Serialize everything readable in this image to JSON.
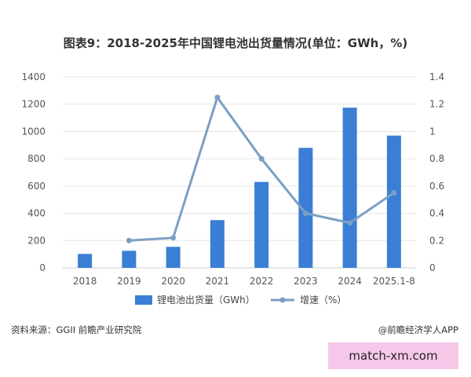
{
  "title": "图表9：2018-2025年中国锂电池出货量情况(单位：GWh，%)",
  "source": "资料来源：GGII 前瞻产业研究院",
  "credit": "@前瞻经济学人APP",
  "badge": "match-xm.com",
  "colors": {
    "bar": "#3a7fd5",
    "line": "#7b9fc4",
    "grid": "#e6e6e6",
    "axis_text": "#555555"
  },
  "chart_data": {
    "type": "bar",
    "categories": [
      "2018",
      "2019",
      "2020",
      "2021",
      "2022",
      "2023",
      "2024",
      "2025.1-8"
    ],
    "series": [
      {
        "name": "锂电池出货量（GWh）",
        "type": "bar",
        "axis": "left",
        "values": [
          102,
          125,
          154,
          350,
          630,
          880,
          1175,
          970
        ]
      },
      {
        "name": "增速（%）",
        "type": "line",
        "axis": "right",
        "values": [
          null,
          0.2,
          0.22,
          1.25,
          0.8,
          0.4,
          0.33,
          0.55
        ]
      }
    ],
    "y_left": {
      "min": 0,
      "max": 1400,
      "ticks": [
        "0",
        "200",
        "400",
        "600",
        "800",
        "1000",
        "1200",
        "1400"
      ]
    },
    "y_right": {
      "min": 0,
      "max": 1.4,
      "ticks": [
        "0",
        "0.2",
        "0.4",
        "0.6",
        "0.8",
        "1",
        "1.2",
        "1.4"
      ]
    },
    "grid": true,
    "legend": {
      "position": "bottom"
    }
  }
}
